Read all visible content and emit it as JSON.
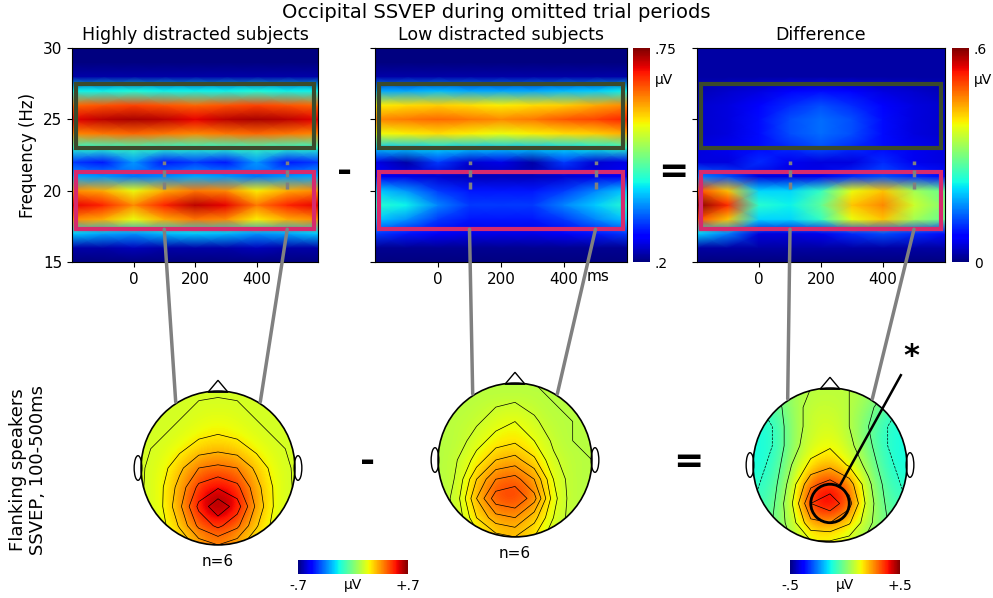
{
  "figure": {
    "title": "Occipital SSVEP during omitted trial periods",
    "operators": [
      "-",
      "=",
      "-",
      "="
    ],
    "row_label": "Flanking speakers\nSSVEP, 100-500ms"
  },
  "chart_data": [
    {
      "type": "heatmap",
      "title": "Highly distracted subjects",
      "ylabel": "Frequency (Hz)",
      "x": [
        -200,
        -100,
        0,
        100,
        200,
        300,
        400,
        500,
        600
      ],
      "y": [
        15,
        16,
        17,
        18,
        19,
        20,
        21,
        22,
        23,
        24,
        25,
        26,
        27,
        28,
        29,
        30
      ],
      "cells": [
        [
          0.2,
          0.2,
          0.2,
          0.2,
          0.2,
          0.2,
          0.2,
          0.2,
          0.2
        ],
        [
          0.22,
          0.22,
          0.23,
          0.22,
          0.22,
          0.22,
          0.23,
          0.22,
          0.22
        ],
        [
          0.38,
          0.36,
          0.35,
          0.37,
          0.38,
          0.37,
          0.35,
          0.36,
          0.38
        ],
        [
          0.62,
          0.6,
          0.55,
          0.6,
          0.63,
          0.62,
          0.56,
          0.6,
          0.62
        ],
        [
          0.7,
          0.68,
          0.62,
          0.68,
          0.72,
          0.7,
          0.63,
          0.68,
          0.7
        ],
        [
          0.62,
          0.6,
          0.55,
          0.6,
          0.63,
          0.62,
          0.56,
          0.6,
          0.62
        ],
        [
          0.36,
          0.35,
          0.33,
          0.34,
          0.36,
          0.35,
          0.33,
          0.35,
          0.36
        ],
        [
          0.3,
          0.28,
          0.35,
          0.28,
          0.3,
          0.28,
          0.35,
          0.28,
          0.3
        ],
        [
          0.42,
          0.42,
          0.43,
          0.42,
          0.42,
          0.42,
          0.43,
          0.42,
          0.42
        ],
        [
          0.62,
          0.63,
          0.64,
          0.63,
          0.62,
          0.63,
          0.64,
          0.63,
          0.62
        ],
        [
          0.7,
          0.72,
          0.73,
          0.72,
          0.7,
          0.72,
          0.73,
          0.72,
          0.7
        ],
        [
          0.64,
          0.65,
          0.66,
          0.65,
          0.64,
          0.65,
          0.66,
          0.65,
          0.64
        ],
        [
          0.4,
          0.4,
          0.41,
          0.4,
          0.4,
          0.4,
          0.41,
          0.4,
          0.4
        ],
        [
          0.22,
          0.22,
          0.22,
          0.22,
          0.22,
          0.22,
          0.22,
          0.22,
          0.22
        ],
        [
          0.2,
          0.2,
          0.2,
          0.2,
          0.2,
          0.2,
          0.2,
          0.2,
          0.2
        ],
        [
          0.2,
          0.2,
          0.2,
          0.2,
          0.2,
          0.2,
          0.2,
          0.2,
          0.2
        ]
      ],
      "xlim": [
        -200,
        600
      ],
      "xticks": [
        0,
        200,
        400
      ],
      "ylim": [
        15,
        30
      ],
      "yticks": [
        15,
        20,
        25,
        30
      ],
      "color_range": [
        0.2,
        0.75
      ],
      "window": [
        100,
        500
      ],
      "bands": [
        {
          "color": "#3b4a2c",
          "range": [
            23,
            27.5
          ]
        },
        {
          "color": "#d62a6e",
          "range": [
            17.3,
            21.3
          ]
        }
      ]
    },
    {
      "type": "heatmap",
      "title": "Low distracted subjects",
      "xlabel": "ms",
      "tick_labels": "x",
      "x": [
        -200,
        -100,
        0,
        100,
        200,
        300,
        400,
        500,
        600
      ],
      "y": [
        15,
        16,
        17,
        18,
        19,
        20,
        21,
        22,
        23,
        24,
        25,
        26,
        27,
        28,
        29,
        30
      ],
      "cells": [
        [
          0.2,
          0.2,
          0.2,
          0.2,
          0.2,
          0.2,
          0.2,
          0.2,
          0.2
        ],
        [
          0.21,
          0.21,
          0.21,
          0.21,
          0.21,
          0.21,
          0.21,
          0.21,
          0.21
        ],
        [
          0.3,
          0.28,
          0.26,
          0.25,
          0.25,
          0.25,
          0.26,
          0.28,
          0.3
        ],
        [
          0.38,
          0.35,
          0.3,
          0.28,
          0.28,
          0.28,
          0.3,
          0.34,
          0.38
        ],
        [
          0.42,
          0.4,
          0.34,
          0.3,
          0.3,
          0.3,
          0.34,
          0.38,
          0.42
        ],
        [
          0.38,
          0.35,
          0.3,
          0.28,
          0.28,
          0.28,
          0.3,
          0.34,
          0.38
        ],
        [
          0.26,
          0.25,
          0.24,
          0.23,
          0.23,
          0.23,
          0.24,
          0.25,
          0.26
        ],
        [
          0.25,
          0.22,
          0.3,
          0.24,
          0.25,
          0.22,
          0.3,
          0.24,
          0.25
        ],
        [
          0.38,
          0.38,
          0.39,
          0.38,
          0.38,
          0.38,
          0.39,
          0.4,
          0.42
        ],
        [
          0.55,
          0.56,
          0.57,
          0.56,
          0.55,
          0.56,
          0.57,
          0.58,
          0.6
        ],
        [
          0.62,
          0.63,
          0.64,
          0.63,
          0.62,
          0.63,
          0.65,
          0.66,
          0.68
        ],
        [
          0.56,
          0.57,
          0.58,
          0.57,
          0.56,
          0.57,
          0.58,
          0.6,
          0.62
        ],
        [
          0.36,
          0.36,
          0.37,
          0.36,
          0.36,
          0.36,
          0.37,
          0.38,
          0.4
        ],
        [
          0.22,
          0.22,
          0.22,
          0.22,
          0.22,
          0.22,
          0.22,
          0.22,
          0.22
        ],
        [
          0.2,
          0.2,
          0.2,
          0.2,
          0.2,
          0.2,
          0.2,
          0.2,
          0.2
        ],
        [
          0.2,
          0.2,
          0.2,
          0.2,
          0.2,
          0.2,
          0.2,
          0.2,
          0.2
        ]
      ],
      "xlim": [
        -200,
        600
      ],
      "xticks": [
        0,
        200,
        400
      ],
      "ylim": [
        15,
        30
      ],
      "yticks": [
        15,
        20,
        25,
        30
      ],
      "color_range": [
        0.2,
        0.75
      ],
      "window": [
        100,
        500
      ],
      "bands": [
        {
          "color": "#3b4a2c",
          "range": [
            23,
            27.5
          ]
        },
        {
          "color": "#d62a6e",
          "range": [
            17.3,
            21.3
          ]
        }
      ],
      "colorbar": {
        "ticks": [
          {
            "value": 0.75,
            "label": ".75"
          },
          {
            "value": 0.2,
            "label": ".2"
          }
        ],
        "label": "μV"
      }
    },
    {
      "type": "heatmap",
      "title": "Difference",
      "tick_labels": "x",
      "x": [
        -200,
        -100,
        0,
        100,
        200,
        300,
        400,
        500,
        600
      ],
      "y": [
        15,
        16,
        17,
        18,
        19,
        20,
        21,
        22,
        23,
        24,
        25,
        26,
        27,
        28,
        29,
        30
      ],
      "cells": [
        [
          0,
          0,
          0,
          0,
          0,
          0,
          0,
          0,
          0
        ],
        [
          0.02,
          0.02,
          0.02,
          0.02,
          0.02,
          0.02,
          0.02,
          0.02,
          0.02
        ],
        [
          0.2,
          0.15,
          0.05,
          0.05,
          0.06,
          0.1,
          0.12,
          0.1,
          0.08
        ],
        [
          0.5,
          0.42,
          0.2,
          0.2,
          0.25,
          0.38,
          0.42,
          0.33,
          0.28
        ],
        [
          0.6,
          0.52,
          0.24,
          0.22,
          0.28,
          0.42,
          0.46,
          0.36,
          0.3
        ],
        [
          0.5,
          0.42,
          0.2,
          0.2,
          0.25,
          0.38,
          0.42,
          0.33,
          0.28
        ],
        [
          0.15,
          0.12,
          0.05,
          0.05,
          0.06,
          0.1,
          0.12,
          0.1,
          0.08
        ],
        [
          0.05,
          0.05,
          0.1,
          0.06,
          0.05,
          0.05,
          0.1,
          0.06,
          0.05
        ],
        [
          0.05,
          0.06,
          0.08,
          0.1,
          0.12,
          0.1,
          0.08,
          0.06,
          0.05
        ],
        [
          0.04,
          0.05,
          0.08,
          0.12,
          0.14,
          0.12,
          0.08,
          0.05,
          0.04
        ],
        [
          0.04,
          0.05,
          0.08,
          0.12,
          0.14,
          0.12,
          0.08,
          0.05,
          0.04
        ],
        [
          0.04,
          0.05,
          0.07,
          0.1,
          0.12,
          0.1,
          0.07,
          0.05,
          0.04
        ],
        [
          0.03,
          0.04,
          0.05,
          0.07,
          0.08,
          0.07,
          0.05,
          0.04,
          0.03
        ],
        [
          0.02,
          0.02,
          0.02,
          0.02,
          0.02,
          0.02,
          0.02,
          0.02,
          0.02
        ],
        [
          0.02,
          0.02,
          0.02,
          0.02,
          0.02,
          0.02,
          0.02,
          0.02,
          0.02
        ],
        [
          0.02,
          0.02,
          0.02,
          0.02,
          0.02,
          0.02,
          0.02,
          0.02,
          0.02
        ]
      ],
      "xlim": [
        -200,
        600
      ],
      "xticks": [
        0,
        200,
        400
      ],
      "ylim": [
        15,
        30
      ],
      "yticks": [
        15,
        20,
        25,
        30
      ],
      "color_range": [
        0,
        0.6
      ],
      "window": [
        100,
        500
      ],
      "bands": [
        {
          "color": "#3b4a2c",
          "range": [
            23,
            27.5
          ]
        },
        {
          "color": "#d62a6e",
          "range": [
            17.3,
            21.3
          ]
        }
      ],
      "colorbar": {
        "ticks": [
          {
            "value": 0.6,
            "label": ".6"
          },
          0
        ],
        "label": "μV"
      }
    },
    {
      "type": "topomap",
      "annotation": "n=6",
      "color_range": [
        -0.7,
        0.7
      ],
      "cells": [
        [
          0.15,
          0.15,
          0.15,
          0.15,
          0.15,
          0.15,
          0.15,
          0.15,
          0.15
        ],
        [
          0.15,
          0.15,
          0.15,
          0.17,
          0.18,
          0.17,
          0.15,
          0.15,
          0.15
        ],
        [
          0.15,
          0.15,
          0.17,
          0.2,
          0.22,
          0.2,
          0.17,
          0.15,
          0.15
        ],
        [
          0.15,
          0.17,
          0.22,
          0.28,
          0.3,
          0.28,
          0.22,
          0.17,
          0.15
        ],
        [
          0.15,
          0.2,
          0.3,
          0.4,
          0.42,
          0.4,
          0.3,
          0.2,
          0.15
        ],
        [
          0.15,
          0.22,
          0.35,
          0.5,
          0.55,
          0.5,
          0.35,
          0.22,
          0.15
        ],
        [
          0.15,
          0.22,
          0.38,
          0.58,
          0.7,
          0.6,
          0.38,
          0.22,
          0.15
        ],
        [
          0.15,
          0.2,
          0.33,
          0.5,
          0.58,
          0.5,
          0.33,
          0.2,
          0.15
        ],
        [
          0.15,
          0.18,
          0.25,
          0.35,
          0.4,
          0.35,
          0.25,
          0.18,
          0.15
        ]
      ]
    },
    {
      "type": "topomap",
      "annotation": "n=6",
      "color_range": [
        -0.7,
        0.7
      ],
      "cells": [
        [
          0.1,
          0.1,
          0.1,
          0.1,
          0.1,
          0.1,
          0.1,
          0.1,
          0.1
        ],
        [
          0.1,
          0.1,
          0.12,
          0.14,
          0.15,
          0.13,
          0.1,
          0.1,
          0.1
        ],
        [
          0.1,
          0.12,
          0.14,
          0.18,
          0.2,
          0.16,
          0.12,
          0.1,
          0.1
        ],
        [
          0.1,
          0.12,
          0.18,
          0.22,
          0.24,
          0.2,
          0.14,
          0.1,
          0.1
        ],
        [
          0.1,
          0.15,
          0.22,
          0.3,
          0.32,
          0.26,
          0.16,
          0.12,
          0.1
        ],
        [
          0.1,
          0.16,
          0.3,
          0.4,
          0.42,
          0.35,
          0.2,
          0.12,
          0.1
        ],
        [
          0.1,
          0.18,
          0.35,
          0.48,
          0.5,
          0.42,
          0.22,
          0.12,
          0.1
        ],
        [
          0.1,
          0.16,
          0.3,
          0.38,
          0.4,
          0.32,
          0.2,
          0.12,
          0.1
        ],
        [
          0.1,
          0.14,
          0.22,
          0.28,
          0.3,
          0.25,
          0.16,
          0.1,
          0.1
        ]
      ],
      "colorbar": {
        "ticks": [
          {
            "value": -0.7,
            "label": "-.7"
          },
          {
            "value": 0.7,
            "label": "+.7"
          }
        ],
        "label": "μV"
      }
    },
    {
      "type": "topomap",
      "color_range": [
        -0.5,
        0.5
      ],
      "cells": [
        [
          -0.05,
          0,
          0.05,
          0.08,
          0.08,
          0.08,
          0.05,
          0,
          -0.05
        ],
        [
          -0.1,
          -0.05,
          0.05,
          0.1,
          0.1,
          0.08,
          0.02,
          -0.05,
          -0.1
        ],
        [
          -0.12,
          -0.08,
          0.05,
          0.1,
          0.12,
          0.08,
          0,
          -0.08,
          -0.12
        ],
        [
          -0.12,
          -0.08,
          0.05,
          0.12,
          0.15,
          0.1,
          0.02,
          -0.08,
          -0.12
        ],
        [
          -0.12,
          -0.06,
          0.08,
          0.18,
          0.22,
          0.15,
          0.05,
          -0.06,
          -0.12
        ],
        [
          -0.1,
          -0.04,
          0.12,
          0.3,
          0.35,
          0.28,
          0.1,
          -0.04,
          -0.1
        ],
        [
          -0.08,
          -0.02,
          0.15,
          0.4,
          0.45,
          0.35,
          0.12,
          -0.02,
          -0.08
        ],
        [
          -0.06,
          0,
          0.12,
          0.3,
          0.32,
          0.25,
          0.1,
          0,
          -0.06
        ],
        [
          -0.05,
          0,
          0.08,
          0.15,
          0.15,
          0.12,
          0.05,
          0,
          -0.05
        ]
      ],
      "colorbar": {
        "ticks": [
          {
            "value": -0.5,
            "label": "-.5"
          },
          {
            "value": 0.5,
            "label": "+.5"
          }
        ],
        "label": "μV"
      },
      "significance": {
        "text": "*",
        "center": [
          0,
          -0.5
        ],
        "radius": 0.25
      }
    }
  ]
}
